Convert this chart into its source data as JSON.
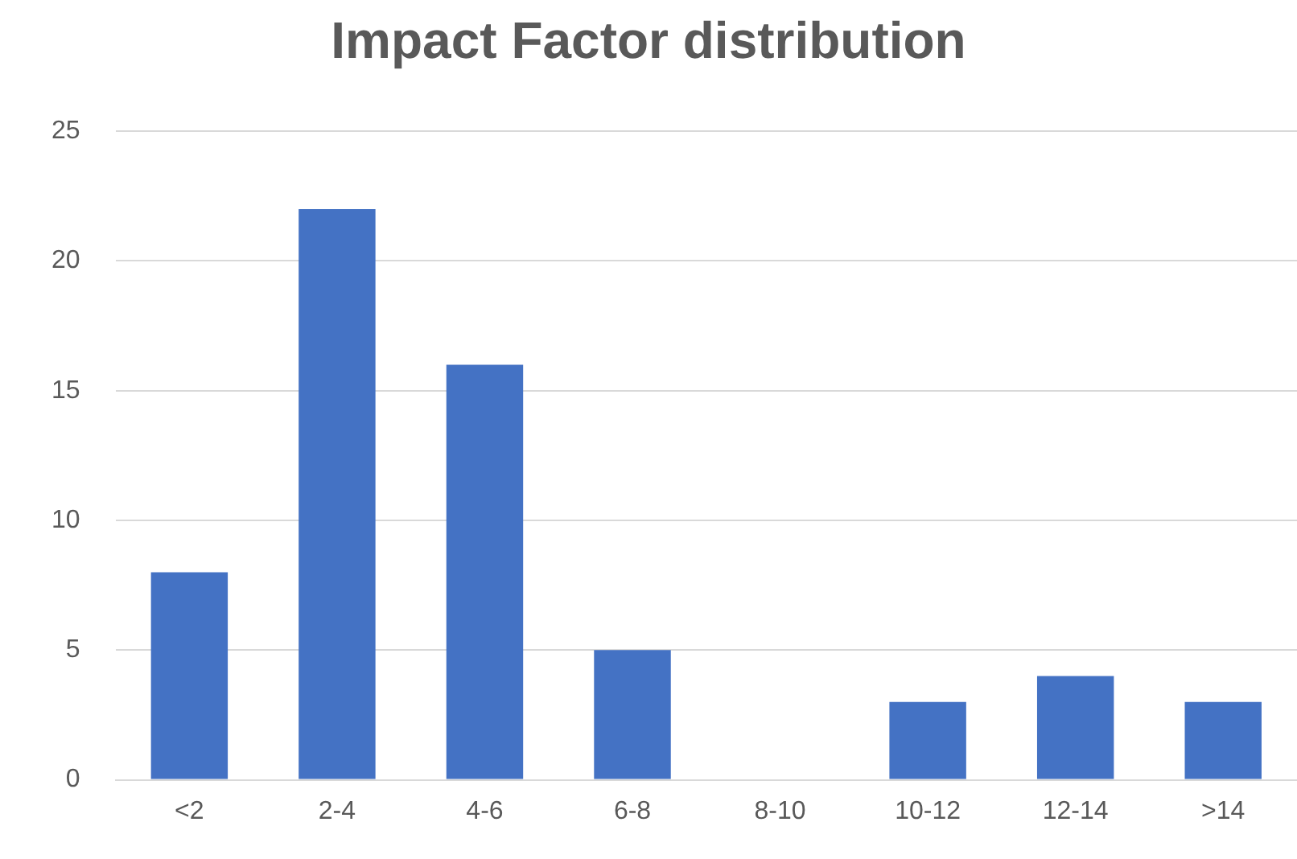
{
  "chart_data": {
    "type": "bar",
    "title": "Impact Factor distribution",
    "categories": [
      "<2",
      "2-4",
      "4-6",
      "6-8",
      "8-10",
      "10-12",
      "12-14",
      ">14"
    ],
    "values": [
      8,
      22,
      16,
      5,
      0,
      3,
      4,
      3
    ],
    "color": "#4472c4",
    "ylim": [
      0,
      25
    ],
    "yticks": [
      0,
      5,
      10,
      15,
      20,
      25
    ],
    "grid": "y",
    "legend": false
  }
}
